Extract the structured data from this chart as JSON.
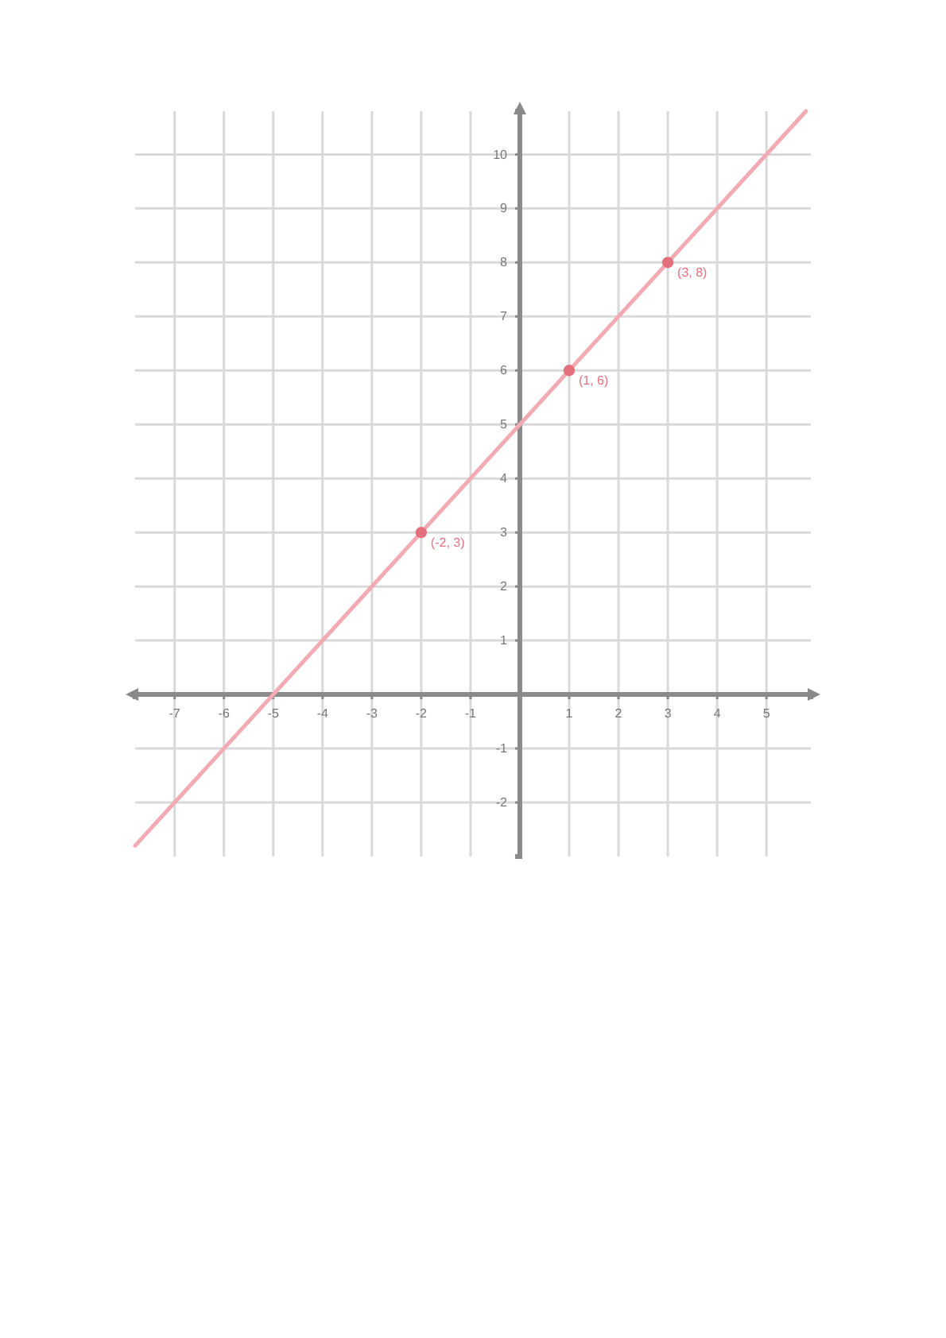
{
  "chart_data": {
    "type": "line",
    "series": [
      {
        "color": "#f2aab3",
        "x": [
          -7.8,
          5.8
        ],
        "values": [
          -2.8,
          10.8
        ]
      },
      {
        "type": "scatter",
        "marker": "circle",
        "color": "#e4707e",
        "x": [
          -2,
          1,
          3
        ],
        "values": [
          3,
          6,
          8
        ]
      }
    ],
    "xlim": [
      -7.8,
      5.9
    ],
    "ylim": [
      -3,
      10.8
    ],
    "xticks": [
      -7,
      -6,
      -5,
      -4,
      -3,
      -2,
      -1,
      1,
      2,
      3,
      4,
      5
    ],
    "yticks": [
      -2,
      -1,
      1,
      2,
      3,
      4,
      5,
      6,
      7,
      8,
      9,
      10
    ],
    "grid": true,
    "annotations": [
      {
        "text": "(-2, 3)",
        "x": -2,
        "y": 3
      },
      {
        "text": "(1, 6)",
        "x": 1,
        "y": 6
      },
      {
        "text": "(3, 8)",
        "x": 3,
        "y": 8
      }
    ]
  }
}
